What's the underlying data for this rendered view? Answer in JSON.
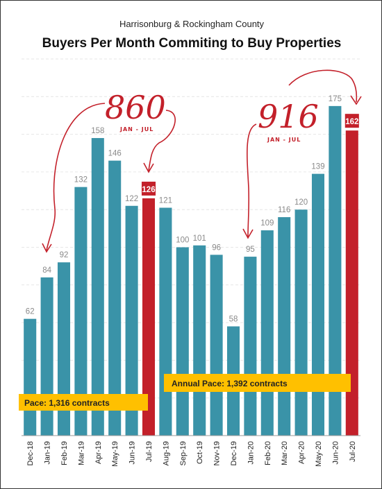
{
  "chart_data": {
    "type": "bar",
    "title": "Buyers Per Month Commiting to Buy Properties",
    "subtitle": "Harrisonburg & Rockingham County",
    "categories": [
      "Dec-18",
      "Jan-19",
      "Feb-19",
      "Mar-19",
      "Apr-19",
      "May-19",
      "Jun-19",
      "Jul-19",
      "Aug-19",
      "Sep-19",
      "Oct-19",
      "Nov-19",
      "Dec-19",
      "Jan-20",
      "Feb-20",
      "Mar-20",
      "Apr-20",
      "May-20",
      "Jun-20",
      "Jul-20"
    ],
    "values": [
      62,
      84,
      92,
      132,
      158,
      146,
      122,
      126,
      121,
      100,
      101,
      96,
      58,
      95,
      109,
      116,
      120,
      139,
      175,
      162
    ],
    "highlighted": [
      "Jul-19",
      "Jul-20"
    ],
    "ylim": [
      0,
      200
    ],
    "grid": true,
    "colors": {
      "bar": "#3a93a8",
      "highlight": "#c3202a",
      "pace_box": "#ffc000",
      "annotation": "#c3202a"
    },
    "annotations": [
      {
        "big": "860",
        "small": "JAN - JUL"
      },
      {
        "big": "916",
        "small": "JAN - JUL"
      }
    ],
    "pace_labels": [
      "Pace: 1,316 contracts",
      "Annual Pace: 1,392 contracts"
    ]
  }
}
